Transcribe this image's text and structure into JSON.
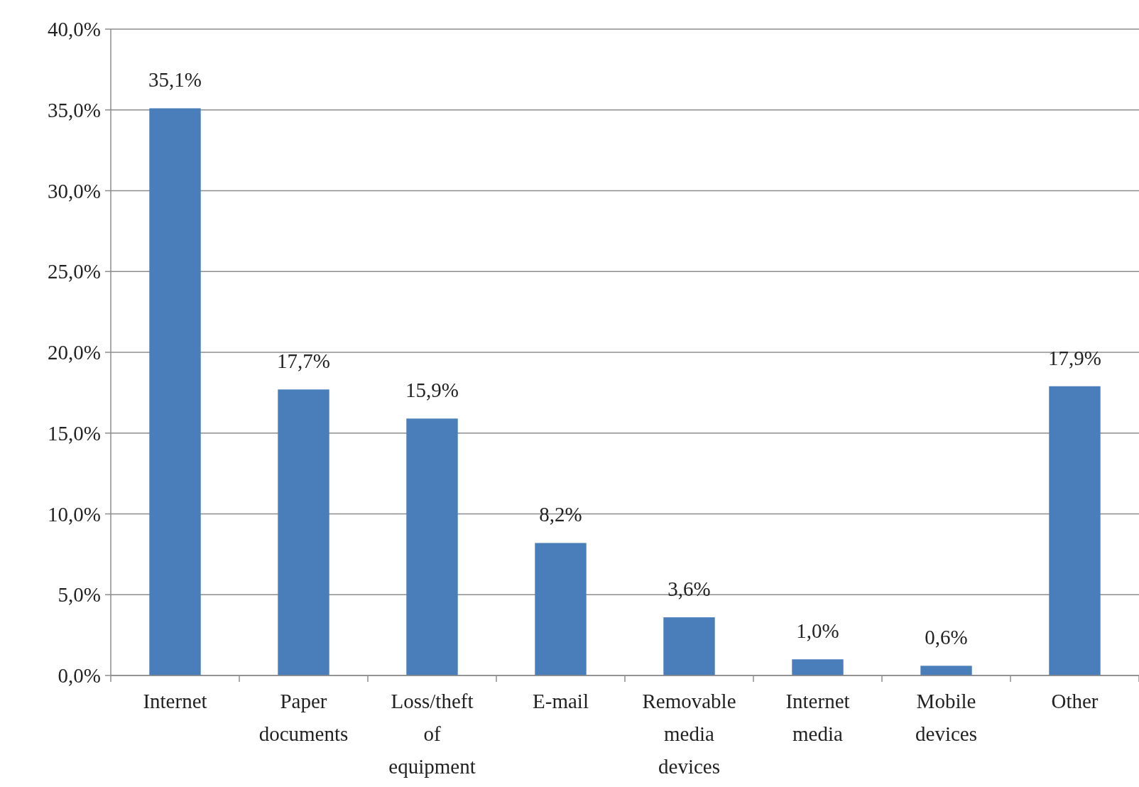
{
  "chart_data": {
    "type": "bar",
    "categories": [
      "Internet",
      "Paper documents",
      "Loss/theft of equipment",
      "E-mail",
      "Removable media devices",
      "Internet media",
      "Mobile devices",
      "Other"
    ],
    "values": [
      35.1,
      17.7,
      15.9,
      8.2,
      3.6,
      1.0,
      0.6,
      17.9
    ],
    "value_labels": [
      "35,1%",
      "17,7%",
      "15,9%",
      "8,2%",
      "3,6%",
      "1,0%",
      "0,6%",
      "17,9%"
    ],
    "color": "#4a7ebb",
    "ylim": [
      0,
      40
    ],
    "yticks": [
      {
        "value": 0,
        "label": "0,0%"
      },
      {
        "value": 5,
        "label": "5,0%"
      },
      {
        "value": 10,
        "label": "10,0%"
      },
      {
        "value": 15,
        "label": "15,0%"
      },
      {
        "value": 20,
        "label": "20,0%"
      },
      {
        "value": 25,
        "label": "25,0%"
      },
      {
        "value": 30,
        "label": "30,0%"
      },
      {
        "value": 35,
        "label": "35,0%"
      },
      {
        "value": 40,
        "label": "40,0%"
      }
    ],
    "grid": "y"
  }
}
